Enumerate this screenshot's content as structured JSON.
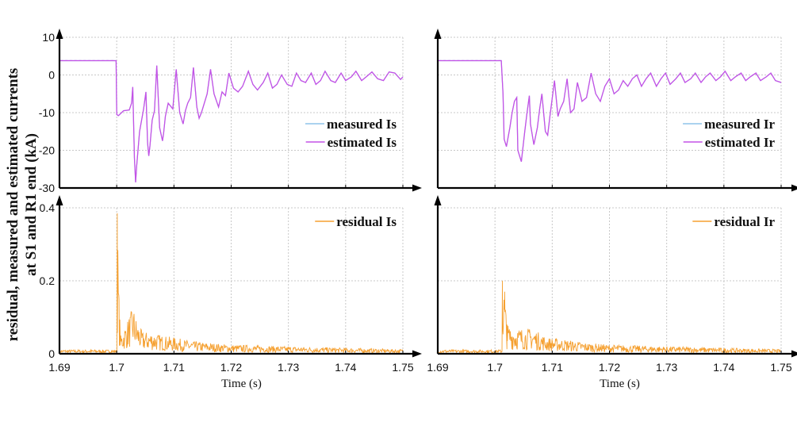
{
  "figure": {
    "ylabel_line1": "residual, measured and estimated currents",
    "ylabel_line2": "at S1 and R1 end (kA)",
    "xlabel": "Time (s)"
  },
  "chart_data": [
    {
      "id": "top-left",
      "type": "line",
      "title": "",
      "xlabel": "",
      "ylabel": "",
      "xlim": [
        1.69,
        1.75
      ],
      "ylim": [
        -30,
        10
      ],
      "yticks": [
        10,
        0,
        -10,
        -20,
        -30
      ],
      "ytick_labels": [
        "10",
        "0",
        "-10",
        "-20",
        "-30"
      ],
      "xticks": [
        1.69,
        1.7,
        1.71,
        1.72,
        1.73,
        1.74,
        1.75
      ],
      "show_xtick_labels": false,
      "show_ytick_labels": true,
      "grid": true,
      "legend_position": "center-right",
      "series": [
        {
          "name": "measured Is",
          "color": "#8fc3ea",
          "x": [
            1.69,
            1.6999,
            1.7,
            1.7003,
            1.7012,
            1.7022,
            1.7026,
            1.7028,
            1.7031,
            1.7033,
            1.7035,
            1.704,
            1.7047,
            1.7051,
            1.7054,
            1.7056,
            1.7058,
            1.7062,
            1.7066,
            1.707,
            1.7075,
            1.708,
            1.7082,
            1.7085,
            1.709,
            1.7098,
            1.7104,
            1.711,
            1.7116,
            1.712,
            1.7124,
            1.7129,
            1.7134,
            1.714,
            1.7144,
            1.7148,
            1.7152,
            1.7158,
            1.7164,
            1.717,
            1.7178,
            1.7184,
            1.719,
            1.7196,
            1.7204,
            1.7212,
            1.722,
            1.723,
            1.7238,
            1.7246,
            1.7256,
            1.7264,
            1.7272,
            1.728,
            1.7288,
            1.7298,
            1.7306,
            1.7314,
            1.7322,
            1.733,
            1.734,
            1.7348,
            1.7356,
            1.7364,
            1.7374,
            1.7382,
            1.7392,
            1.74,
            1.741,
            1.7418,
            1.7428,
            1.7436,
            1.7446,
            1.7456,
            1.7466,
            1.7476,
            1.7486,
            1.7496,
            1.75
          ],
          "y": [
            3.8,
            3.8,
            -10.5,
            -10.8,
            -9.5,
            -9.3,
            -7.5,
            -3.2,
            -22,
            -28.5,
            -24,
            -15,
            -9,
            -4.5,
            -18,
            -21.5,
            -19,
            -12,
            -9.5,
            2.5,
            -14,
            -17.5,
            -15.5,
            -11,
            -7.5,
            -9,
            1.5,
            -10,
            -13,
            -9.5,
            -7.5,
            -6,
            2,
            -8.5,
            -11.5,
            -10,
            -8,
            -5,
            1.5,
            -5,
            -8.5,
            -4.5,
            -5.5,
            0.5,
            -3.5,
            -4.5,
            -3,
            1,
            -2.5,
            -4,
            -2,
            0.5,
            -3.5,
            -2.5,
            0,
            -2.5,
            -3,
            0.5,
            -1.5,
            -2,
            0.5,
            -2.5,
            -1.5,
            1,
            -1.5,
            -2,
            0.5,
            -1.5,
            -0.5,
            1,
            -1.5,
            -0.5,
            0.8,
            -1,
            -1.5,
            0.8,
            0.5,
            -1.2,
            -0.5
          ]
        },
        {
          "name": "estimated Is",
          "color": "#c452e6",
          "x": [
            1.69,
            1.6999,
            1.7,
            1.7003,
            1.7012,
            1.7022,
            1.7026,
            1.7028,
            1.7031,
            1.7033,
            1.7035,
            1.704,
            1.7047,
            1.7051,
            1.7054,
            1.7056,
            1.7058,
            1.7062,
            1.7066,
            1.707,
            1.7075,
            1.708,
            1.7082,
            1.7085,
            1.709,
            1.7098,
            1.7104,
            1.711,
            1.7116,
            1.712,
            1.7124,
            1.7129,
            1.7134,
            1.714,
            1.7144,
            1.7148,
            1.7152,
            1.7158,
            1.7164,
            1.717,
            1.7178,
            1.7184,
            1.719,
            1.7196,
            1.7204,
            1.7212,
            1.722,
            1.723,
            1.7238,
            1.7246,
            1.7256,
            1.7264,
            1.7272,
            1.728,
            1.7288,
            1.7298,
            1.7306,
            1.7314,
            1.7322,
            1.733,
            1.734,
            1.7348,
            1.7356,
            1.7364,
            1.7374,
            1.7382,
            1.7392,
            1.74,
            1.741,
            1.7418,
            1.7428,
            1.7436,
            1.7446,
            1.7456,
            1.7466,
            1.7476,
            1.7486,
            1.7496,
            1.75
          ],
          "y": [
            3.8,
            3.8,
            -10.5,
            -10.8,
            -9.5,
            -9.3,
            -7.5,
            -3.2,
            -22,
            -28.5,
            -24,
            -15,
            -9,
            -4.5,
            -18,
            -21.5,
            -19,
            -12,
            -9.5,
            2.5,
            -14,
            -17.5,
            -15.5,
            -11,
            -7.5,
            -9,
            1.5,
            -10,
            -13,
            -9.5,
            -7.5,
            -6,
            2,
            -8.5,
            -11.5,
            -10,
            -8,
            -5,
            1.5,
            -5,
            -8.5,
            -4.5,
            -5.5,
            0.5,
            -3.5,
            -4.5,
            -3,
            1,
            -2.5,
            -4,
            -2,
            0.5,
            -3.5,
            -2.5,
            0,
            -2.5,
            -3,
            0.5,
            -1.5,
            -2,
            0.5,
            -2.5,
            -1.5,
            1,
            -1.5,
            -2,
            0.5,
            -1.5,
            -0.5,
            1,
            -1.5,
            -0.5,
            0.8,
            -1,
            -1.5,
            0.8,
            0.5,
            -1.2,
            -0.5
          ]
        }
      ]
    },
    {
      "id": "top-right",
      "type": "line",
      "title": "",
      "xlabel": "",
      "ylabel": "",
      "xlim": [
        1.69,
        1.75
      ],
      "ylim": [
        -30,
        10
      ],
      "yticks": [
        10,
        0,
        -10,
        -20,
        -30
      ],
      "xticks": [
        1.69,
        1.7,
        1.71,
        1.72,
        1.73,
        1.74,
        1.75
      ],
      "show_xtick_labels": false,
      "show_ytick_labels": false,
      "grid": true,
      "legend_position": "center-right",
      "series": [
        {
          "name": "measured Ir",
          "color": "#8fc3ea",
          "x": [
            1.69,
            1.7011,
            1.7014,
            1.7016,
            1.702,
            1.7026,
            1.703,
            1.7034,
            1.7038,
            1.704,
            1.7046,
            1.7052,
            1.7056,
            1.706,
            1.7062,
            1.7068,
            1.7074,
            1.7078,
            1.7082,
            1.7088,
            1.7092,
            1.7096,
            1.7104,
            1.711,
            1.7114,
            1.712,
            1.7126,
            1.7132,
            1.7138,
            1.7144,
            1.7152,
            1.716,
            1.7168,
            1.7176,
            1.7184,
            1.7192,
            1.72,
            1.7208,
            1.7216,
            1.7224,
            1.7232,
            1.724,
            1.7248,
            1.7256,
            1.7264,
            1.7272,
            1.7282,
            1.729,
            1.7298,
            1.7306,
            1.7316,
            1.7324,
            1.7332,
            1.7342,
            1.735,
            1.736,
            1.7368,
            1.7376,
            1.7386,
            1.7394,
            1.7402,
            1.7412,
            1.742,
            1.743,
            1.7438,
            1.7446,
            1.7456,
            1.7464,
            1.7474,
            1.7482,
            1.749,
            1.75
          ],
          "y": [
            3.8,
            3.8,
            -5,
            -17,
            -19,
            -14,
            -10,
            -7,
            -6,
            -20,
            -23,
            -15,
            -10,
            -5.5,
            -13,
            -18.5,
            -14,
            -9,
            -5,
            -15,
            -16,
            -11,
            -1.5,
            -11,
            -9,
            -7,
            -1,
            -10,
            -9,
            -2,
            -7,
            -6,
            0.5,
            -5,
            -7,
            -3,
            -1,
            -5,
            -4,
            -1.5,
            -3,
            -1,
            0,
            -3,
            -1,
            0.5,
            -3,
            -1,
            0.5,
            -2.5,
            -1,
            0.5,
            -2,
            -1,
            0.5,
            -2,
            -0.5,
            0.5,
            -1.5,
            -0.5,
            1,
            -1.5,
            -0.5,
            0.5,
            -1.5,
            -0.5,
            0.5,
            -1.5,
            -0.5,
            0.5,
            -1.5,
            -2
          ]
        },
        {
          "name": "estimated Ir",
          "color": "#c452e6",
          "x": [
            1.69,
            1.7011,
            1.7014,
            1.7016,
            1.702,
            1.7026,
            1.703,
            1.7034,
            1.7038,
            1.704,
            1.7046,
            1.7052,
            1.7056,
            1.706,
            1.7062,
            1.7068,
            1.7074,
            1.7078,
            1.7082,
            1.7088,
            1.7092,
            1.7096,
            1.7104,
            1.711,
            1.7114,
            1.712,
            1.7126,
            1.7132,
            1.7138,
            1.7144,
            1.7152,
            1.716,
            1.7168,
            1.7176,
            1.7184,
            1.7192,
            1.72,
            1.7208,
            1.7216,
            1.7224,
            1.7232,
            1.724,
            1.7248,
            1.7256,
            1.7264,
            1.7272,
            1.7282,
            1.729,
            1.7298,
            1.7306,
            1.7316,
            1.7324,
            1.7332,
            1.7342,
            1.735,
            1.736,
            1.7368,
            1.7376,
            1.7386,
            1.7394,
            1.7402,
            1.7412,
            1.742,
            1.743,
            1.7438,
            1.7446,
            1.7456,
            1.7464,
            1.7474,
            1.7482,
            1.749,
            1.75
          ],
          "y": [
            3.8,
            3.8,
            -5,
            -17,
            -19,
            -14,
            -10,
            -7,
            -6,
            -20,
            -23,
            -15,
            -10,
            -5.5,
            -13,
            -18.5,
            -14,
            -9,
            -5,
            -15,
            -16,
            -11,
            -1.5,
            -11,
            -9,
            -7,
            -1,
            -10,
            -9,
            -2,
            -7,
            -6,
            0.5,
            -5,
            -7,
            -3,
            -1,
            -5,
            -4,
            -1.5,
            -3,
            -1,
            0,
            -3,
            -1,
            0.5,
            -3,
            -1,
            0.5,
            -2.5,
            -1,
            0.5,
            -2,
            -1,
            0.5,
            -2,
            -0.5,
            0.5,
            -1.5,
            -0.5,
            1,
            -1.5,
            -0.5,
            0.5,
            -1.5,
            -0.5,
            0.5,
            -1.5,
            -0.5,
            0.5,
            -1.5,
            -2
          ]
        }
      ]
    },
    {
      "id": "bottom-left",
      "type": "line",
      "title": "",
      "xlabel": "Time (s)",
      "ylabel": "",
      "xlim": [
        1.69,
        1.75
      ],
      "ylim": [
        0,
        0.4
      ],
      "yticks": [
        0.4,
        0.2,
        0
      ],
      "ytick_labels": [
        "0.4",
        "0.2",
        "0"
      ],
      "xticks": [
        1.69,
        1.7,
        1.71,
        1.72,
        1.73,
        1.74,
        1.75
      ],
      "xtick_labels": [
        "1.69",
        "1.7",
        "1.71",
        "1.72",
        "1.73",
        "1.74",
        "1.75"
      ],
      "show_xtick_labels": true,
      "show_ytick_labels": true,
      "grid": true,
      "legend_position": "top-right",
      "series": [
        {
          "name": "residual Is",
          "color": "#f5a030",
          "noise_floor": 0.01,
          "peaks": [
            {
              "x": 1.7001,
              "y": 0.385
            },
            {
              "x": 1.7004,
              "y": 0.15
            },
            {
              "x": 1.7007,
              "y": 0.05
            },
            {
              "x": 1.7029,
              "y": 0.13
            },
            {
              "x": 1.7035,
              "y": 0.09
            },
            {
              "x": 1.7045,
              "y": 0.06
            },
            {
              "x": 1.706,
              "y": 0.06
            },
            {
              "x": 1.708,
              "y": 0.05
            },
            {
              "x": 1.71,
              "y": 0.045
            },
            {
              "x": 1.713,
              "y": 0.035
            },
            {
              "x": 1.716,
              "y": 0.03
            },
            {
              "x": 1.72,
              "y": 0.025
            },
            {
              "x": 1.73,
              "y": 0.02
            },
            {
              "x": 1.75,
              "y": 0.012
            }
          ]
        }
      ]
    },
    {
      "id": "bottom-right",
      "type": "line",
      "title": "",
      "xlabel": "Time (s)",
      "ylabel": "",
      "xlim": [
        1.69,
        1.75
      ],
      "ylim": [
        0,
        0.4
      ],
      "yticks": [
        0.4,
        0.2,
        0
      ],
      "xticks": [
        1.69,
        1.7,
        1.71,
        1.72,
        1.73,
        1.74,
        1.75
      ],
      "xtick_labels": [
        "1.69",
        "1.7",
        "1.71",
        "1.72",
        "1.73",
        "1.74",
        "1.75"
      ],
      "show_xtick_labels": true,
      "show_ytick_labels": false,
      "grid": true,
      "legend_position": "top-right",
      "series": [
        {
          "name": "residual Ir",
          "color": "#f5a030",
          "noise_floor": 0.01,
          "peaks": [
            {
              "x": 1.7013,
              "y": 0.2
            },
            {
              "x": 1.7017,
              "y": 0.17
            },
            {
              "x": 1.7021,
              "y": 0.08
            },
            {
              "x": 1.704,
              "y": 0.07
            },
            {
              "x": 1.7065,
              "y": 0.07
            },
            {
              "x": 1.709,
              "y": 0.045
            },
            {
              "x": 1.712,
              "y": 0.04
            },
            {
              "x": 1.716,
              "y": 0.03
            },
            {
              "x": 1.72,
              "y": 0.025
            },
            {
              "x": 1.73,
              "y": 0.02
            },
            {
              "x": 1.75,
              "y": 0.012
            }
          ]
        }
      ]
    }
  ]
}
